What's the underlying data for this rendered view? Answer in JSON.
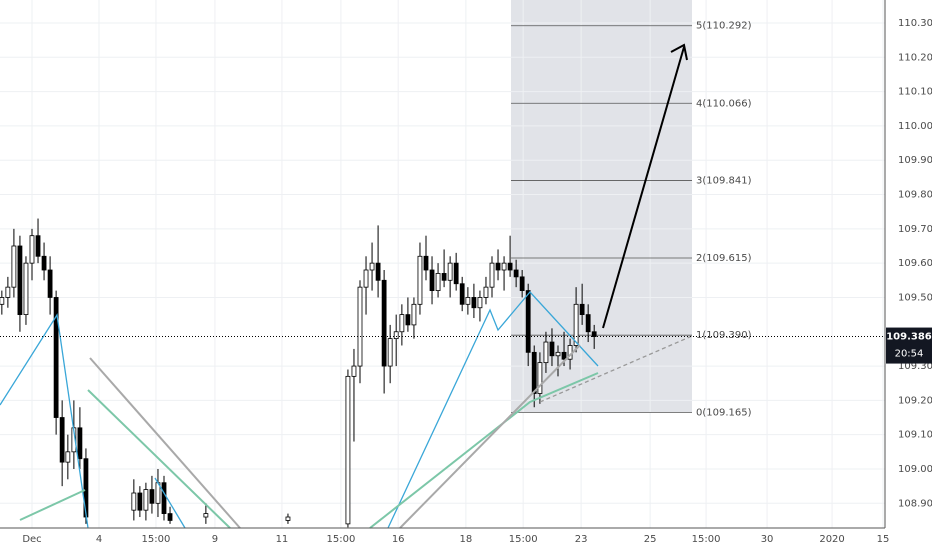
{
  "chart_data": {
    "type": "candlestick",
    "candles": [
      [
        -0.9,
        109.48,
        109.52,
        109.45,
        109.5
      ],
      [
        -0.72,
        109.5,
        109.56,
        109.47,
        109.53
      ],
      [
        -0.54,
        109.53,
        109.7,
        109.5,
        109.65
      ],
      [
        -0.36,
        109.65,
        109.68,
        109.4,
        109.45
      ],
      [
        -0.18,
        109.45,
        109.62,
        109.42,
        109.6
      ],
      [
        0,
        109.6,
        109.7,
        109.55,
        109.68
      ],
      [
        0.18,
        109.68,
        109.73,
        109.6,
        109.62
      ],
      [
        0.36,
        109.62,
        109.66,
        109.55,
        109.58
      ],
      [
        0.54,
        109.58,
        109.62,
        109.45,
        109.5
      ],
      [
        0.72,
        109.5,
        109.52,
        109.1,
        109.15
      ],
      [
        0.9,
        109.15,
        109.2,
        108.95,
        109.02
      ],
      [
        1.07,
        109.02,
        109.1,
        108.97,
        109.05
      ],
      [
        1.25,
        109.05,
        109.2,
        109.0,
        109.12
      ],
      [
        1.43,
        109.12,
        109.18,
        109.0,
        109.03
      ],
      [
        1.61,
        109.03,
        109.06,
        108.84,
        108.86
      ],
      [
        3.04,
        108.88,
        108.97,
        108.85,
        108.93
      ],
      [
        3.22,
        108.93,
        108.95,
        108.86,
        108.88
      ],
      [
        3.4,
        108.88,
        108.96,
        108.85,
        108.94
      ],
      [
        3.58,
        108.94,
        108.98,
        108.87,
        108.9
      ],
      [
        3.76,
        108.9,
        109.0,
        108.86,
        108.96
      ],
      [
        3.94,
        108.96,
        108.98,
        108.85,
        108.87
      ],
      [
        4.12,
        108.87,
        108.89,
        108.84,
        108.85
      ],
      [
        5.19,
        108.86,
        108.9,
        108.84,
        108.87
      ],
      [
        7.64,
        108.85,
        108.87,
        108.84,
        108.86
      ],
      [
        9.43,
        108.84,
        109.29,
        108.83,
        109.27
      ],
      [
        9.61,
        109.27,
        109.35,
        109.08,
        109.3
      ],
      [
        9.79,
        109.3,
        109.55,
        109.25,
        109.53
      ],
      [
        9.97,
        109.53,
        109.62,
        109.45,
        109.58
      ],
      [
        10.15,
        109.58,
        109.66,
        109.52,
        109.6
      ],
      [
        10.33,
        109.6,
        109.71,
        109.5,
        109.55
      ],
      [
        10.51,
        109.55,
        109.58,
        109.22,
        109.3
      ],
      [
        10.69,
        109.3,
        109.42,
        109.25,
        109.38
      ],
      [
        10.87,
        109.38,
        109.45,
        109.3,
        109.4
      ],
      [
        11.04,
        109.4,
        109.48,
        109.36,
        109.45
      ],
      [
        11.22,
        109.45,
        109.5,
        109.4,
        109.42
      ],
      [
        11.4,
        109.42,
        109.5,
        109.38,
        109.48
      ],
      [
        11.58,
        109.48,
        109.66,
        109.45,
        109.62
      ],
      [
        11.76,
        109.62,
        109.68,
        109.55,
        109.58
      ],
      [
        11.94,
        109.58,
        109.62,
        109.48,
        109.52
      ],
      [
        12.12,
        109.52,
        109.6,
        109.5,
        109.57
      ],
      [
        12.3,
        109.57,
        109.64,
        109.53,
        109.55
      ],
      [
        12.48,
        109.55,
        109.62,
        109.5,
        109.6
      ],
      [
        12.66,
        109.6,
        109.63,
        109.52,
        109.54
      ],
      [
        12.84,
        109.54,
        109.56,
        109.46,
        109.48
      ],
      [
        13.01,
        109.48,
        109.53,
        109.45,
        109.5
      ],
      [
        13.19,
        109.5,
        109.54,
        109.44,
        109.47
      ],
      [
        13.37,
        109.47,
        109.52,
        109.43,
        109.5
      ],
      [
        13.55,
        109.5,
        109.56,
        109.48,
        109.53
      ],
      [
        13.73,
        109.53,
        109.62,
        109.5,
        109.6
      ],
      [
        13.91,
        109.6,
        109.64,
        109.55,
        109.58
      ],
      [
        14.09,
        109.58,
        109.62,
        109.52,
        109.6
      ],
      [
        14.27,
        109.6,
        109.68,
        109.56,
        109.58
      ],
      [
        14.45,
        109.58,
        109.61,
        109.53,
        109.56
      ],
      [
        14.63,
        109.56,
        109.58,
        109.5,
        109.52
      ],
      [
        14.81,
        109.52,
        109.54,
        109.3,
        109.34
      ],
      [
        14.99,
        109.34,
        109.36,
        109.18,
        109.22
      ],
      [
        15.16,
        109.22,
        109.34,
        109.19,
        109.31
      ],
      [
        15.34,
        109.31,
        109.4,
        109.28,
        109.37
      ],
      [
        15.52,
        109.37,
        109.41,
        109.3,
        109.33
      ],
      [
        15.7,
        109.33,
        109.36,
        109.27,
        109.34
      ],
      [
        15.88,
        109.34,
        109.4,
        109.3,
        109.32
      ],
      [
        16.06,
        109.32,
        109.38,
        109.29,
        109.36
      ],
      [
        16.24,
        109.36,
        109.53,
        109.34,
        109.48
      ],
      [
        16.42,
        109.48,
        109.54,
        109.42,
        109.45
      ],
      [
        16.6,
        109.45,
        109.48,
        109.37,
        109.4
      ],
      [
        16.78,
        109.4,
        109.42,
        109.35,
        109.386
      ]
    ],
    "xlim": [
      -0.955,
      25.46
    ],
    "xticks": [
      {
        "value": 0,
        "label": "Dec"
      },
      {
        "value": 2.0,
        "label": "4"
      },
      {
        "value": 3.7,
        "label": "15:00"
      },
      {
        "value": 5.46,
        "label": "9"
      },
      {
        "value": 7.46,
        "label": "11"
      },
      {
        "value": 9.22,
        "label": "15:00"
      },
      {
        "value": 10.93,
        "label": "16"
      },
      {
        "value": 12.95,
        "label": "18"
      },
      {
        "value": 14.66,
        "label": "15:00"
      },
      {
        "value": 16.39,
        "label": "23"
      },
      {
        "value": 18.45,
        "label": "25"
      },
      {
        "value": 20.12,
        "label": "15:00"
      },
      {
        "value": 21.94,
        "label": "30"
      },
      {
        "value": 23.88,
        "label": "2020"
      },
      {
        "value": 25.4,
        "label": "15"
      }
    ],
    "ylim": [
      108.828,
      110.367
    ],
    "yticks": [
      {
        "value": 110.3,
        "label": "110.300"
      },
      {
        "value": 110.2,
        "label": "110.200"
      },
      {
        "value": 110.1,
        "label": "110.100"
      },
      {
        "value": 110.0,
        "label": "110.000"
      },
      {
        "value": 109.9,
        "label": "109.900"
      },
      {
        "value": 109.8,
        "label": "109.800"
      },
      {
        "value": 109.7,
        "label": "109.700"
      },
      {
        "value": 109.6,
        "label": "109.600"
      },
      {
        "value": 109.5,
        "label": "109.500"
      },
      {
        "value": 109.3,
        "label": "109.300"
      },
      {
        "value": 109.2,
        "label": "109.200"
      },
      {
        "value": 109.1,
        "label": "109.100"
      },
      {
        "value": 109.0,
        "label": "109.000"
      },
      {
        "value": 108.9,
        "label": "108.900"
      }
    ],
    "fib_levels": [
      {
        "value": 110.292,
        "label": "5(110.292)"
      },
      {
        "value": 110.066,
        "label": "4(110.066)"
      },
      {
        "value": 109.841,
        "label": "3(109.841)"
      },
      {
        "value": 109.615,
        "label": "2(109.615)"
      },
      {
        "value": 109.39,
        "label": "1(109.390)"
      },
      {
        "value": 109.165,
        "label": "0(109.165)"
      }
    ],
    "last_price": 109.386,
    "countdown": "20:54",
    "grid": true
  }
}
